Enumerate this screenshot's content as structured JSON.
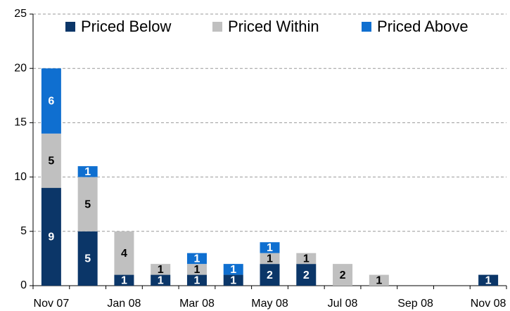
{
  "chart_data": {
    "type": "stacked_bar",
    "categories": [
      "Nov 07",
      null,
      "Jan 08",
      null,
      "Mar 08",
      null,
      "May 08",
      null,
      "Jul 08",
      null,
      "Sep 08",
      null,
      "Nov 08"
    ],
    "series": [
      {
        "name": "Priced Below",
        "color": "#0b3668",
        "label_color": "#ffffff",
        "values": [
          9,
          5,
          1,
          1,
          1,
          1,
          2,
          2,
          0,
          0,
          0,
          0,
          1
        ]
      },
      {
        "name": "Priced Within",
        "color": "#c0c0c0",
        "label_color": "#000000",
        "values": [
          5,
          5,
          4,
          1,
          1,
          0,
          1,
          1,
          2,
          1,
          0,
          0,
          0
        ]
      },
      {
        "name": "Priced Above",
        "color": "#0f6fd0",
        "label_color": "#ffffff",
        "values": [
          6,
          1,
          0,
          0,
          1,
          1,
          1,
          0,
          0,
          0,
          0,
          0,
          0
        ]
      }
    ],
    "ylim": [
      0,
      25
    ],
    "yticks": [
      0,
      5,
      10,
      15,
      20,
      25
    ],
    "grid": true,
    "legend": "top"
  }
}
